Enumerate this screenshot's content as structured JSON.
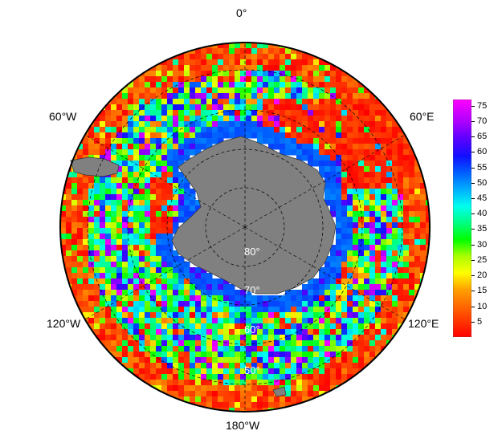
{
  "longitude_labels": {
    "lon_0": "0°",
    "lon_60e": "60°E",
    "lon_120e": "120°E",
    "lon_180": "180°W",
    "lon_120w": "120°W",
    "lon_60w": "60°W"
  },
  "latitude_labels": {
    "lat_80": "80°",
    "lat_70": "70°",
    "lat_60": "60°",
    "lat_50": "50°"
  },
  "colorbar": {
    "min": 0,
    "max": 77,
    "ticks": [
      "75",
      "70",
      "65",
      "60",
      "55",
      "50",
      "45",
      "40",
      "35",
      "30",
      "25",
      "20",
      "15",
      "10",
      "5"
    ]
  },
  "colors": {
    "land": "#808080",
    "graticule": "#000000",
    "background": "#ffffff"
  }
}
